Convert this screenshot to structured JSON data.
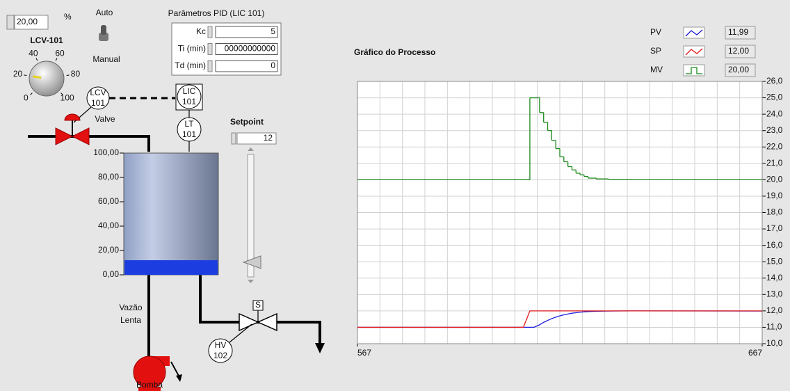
{
  "output": {
    "value": "20,00",
    "unit": "%"
  },
  "valve_tag": "LCV-101",
  "knob": {
    "lim": [
      0,
      100
    ],
    "ticks": [
      0,
      20,
      40,
      60,
      80,
      100
    ],
    "value": 20
  },
  "mode": {
    "on": "Auto",
    "off": "Manual"
  },
  "pid": {
    "title": "Parâmetros PID  (LIC 101)",
    "rows": [
      {
        "label": "Kc",
        "value": "5"
      },
      {
        "label": "Ti (min)",
        "value": "00000000000"
      },
      {
        "label": "Td (min)",
        "value": "0"
      }
    ]
  },
  "instruments": {
    "lcv": {
      "tag": "LCV",
      "loop": "101"
    },
    "lic": {
      "tag": "LIC",
      "loop": "101"
    },
    "lt": {
      "tag": "LT",
      "loop": "101"
    },
    "hv": {
      "tag": "HV",
      "loop": "102"
    },
    "solenoid": "S"
  },
  "labels": {
    "valve": "Valve",
    "flow": "Vazão",
    "flow2": "Lenta",
    "pump": "Bomba"
  },
  "setpoint": {
    "label": "Setpoint",
    "value": 12
  },
  "tank": {
    "level": 11.99,
    "ylim": [
      0,
      100
    ],
    "yticks": [
      {
        "value": 100,
        "label": "100,00"
      },
      {
        "value": 80,
        "label": "80,00"
      },
      {
        "value": 60,
        "label": "60,00"
      },
      {
        "value": 40,
        "label": "40,00"
      },
      {
        "value": 20,
        "label": "20,00"
      },
      {
        "value": 0,
        "label": "0,00"
      }
    ]
  },
  "chart_data": {
    "type": "line",
    "title": "Gráfico do Processo",
    "x": [
      567,
      608,
      609.6,
      610.6,
      612,
      613,
      614,
      615,
      616,
      617,
      618,
      619,
      620,
      621,
      622,
      623,
      624,
      626,
      629,
      635,
      667
    ],
    "xlim": [
      567,
      667
    ],
    "xticks": [
      567,
      667
    ],
    "ylim": [
      10,
      26
    ],
    "yticks": [
      {
        "value": 26,
        "label": "26,0"
      },
      {
        "value": 25,
        "label": "25,0"
      },
      {
        "value": 24,
        "label": "24,0"
      },
      {
        "value": 23,
        "label": "23,0"
      },
      {
        "value": 22,
        "label": "22,0"
      },
      {
        "value": 21,
        "label": "21,0"
      },
      {
        "value": 20,
        "label": "20,0"
      },
      {
        "value": 19,
        "label": "19,0"
      },
      {
        "value": 18,
        "label": "18,0"
      },
      {
        "value": 17,
        "label": "17,0"
      },
      {
        "value": 16,
        "label": "16,0"
      },
      {
        "value": 15,
        "label": "15,0"
      },
      {
        "value": 14,
        "label": "14,0"
      },
      {
        "value": 13,
        "label": "13,0"
      },
      {
        "value": 12,
        "label": "12,0"
      },
      {
        "value": 11,
        "label": "11,0"
      },
      {
        "value": 10,
        "label": "10,0"
      }
    ],
    "grid": true,
    "series": [
      {
        "name": "PV",
        "color": "#1a1adc",
        "display": "11,99",
        "step": false,
        "values": [
          11,
          11,
          11,
          11,
          11.15,
          11.3,
          11.42,
          11.53,
          11.62,
          11.7,
          11.76,
          11.81,
          11.86,
          11.89,
          11.92,
          11.94,
          11.96,
          11.98,
          11.99,
          12,
          11.99
        ]
      },
      {
        "name": "SP",
        "color": "#e01818",
        "display": "12,00",
        "step": false,
        "values": [
          11,
          11,
          12,
          12,
          12,
          12,
          12,
          12,
          12,
          12,
          12,
          12,
          12,
          12,
          12,
          12,
          12,
          12,
          12,
          12,
          12
        ]
      },
      {
        "name": "MV",
        "color": "#1a8a1a",
        "display": "20,00",
        "step": true,
        "values": [
          20,
          20,
          25,
          25,
          24.1,
          23.5,
          23,
          22.4,
          21.9,
          21.4,
          21.1,
          20.8,
          20.6,
          20.4,
          20.3,
          20.2,
          20.1,
          20.05,
          20.02,
          20,
          20
        ]
      }
    ]
  }
}
